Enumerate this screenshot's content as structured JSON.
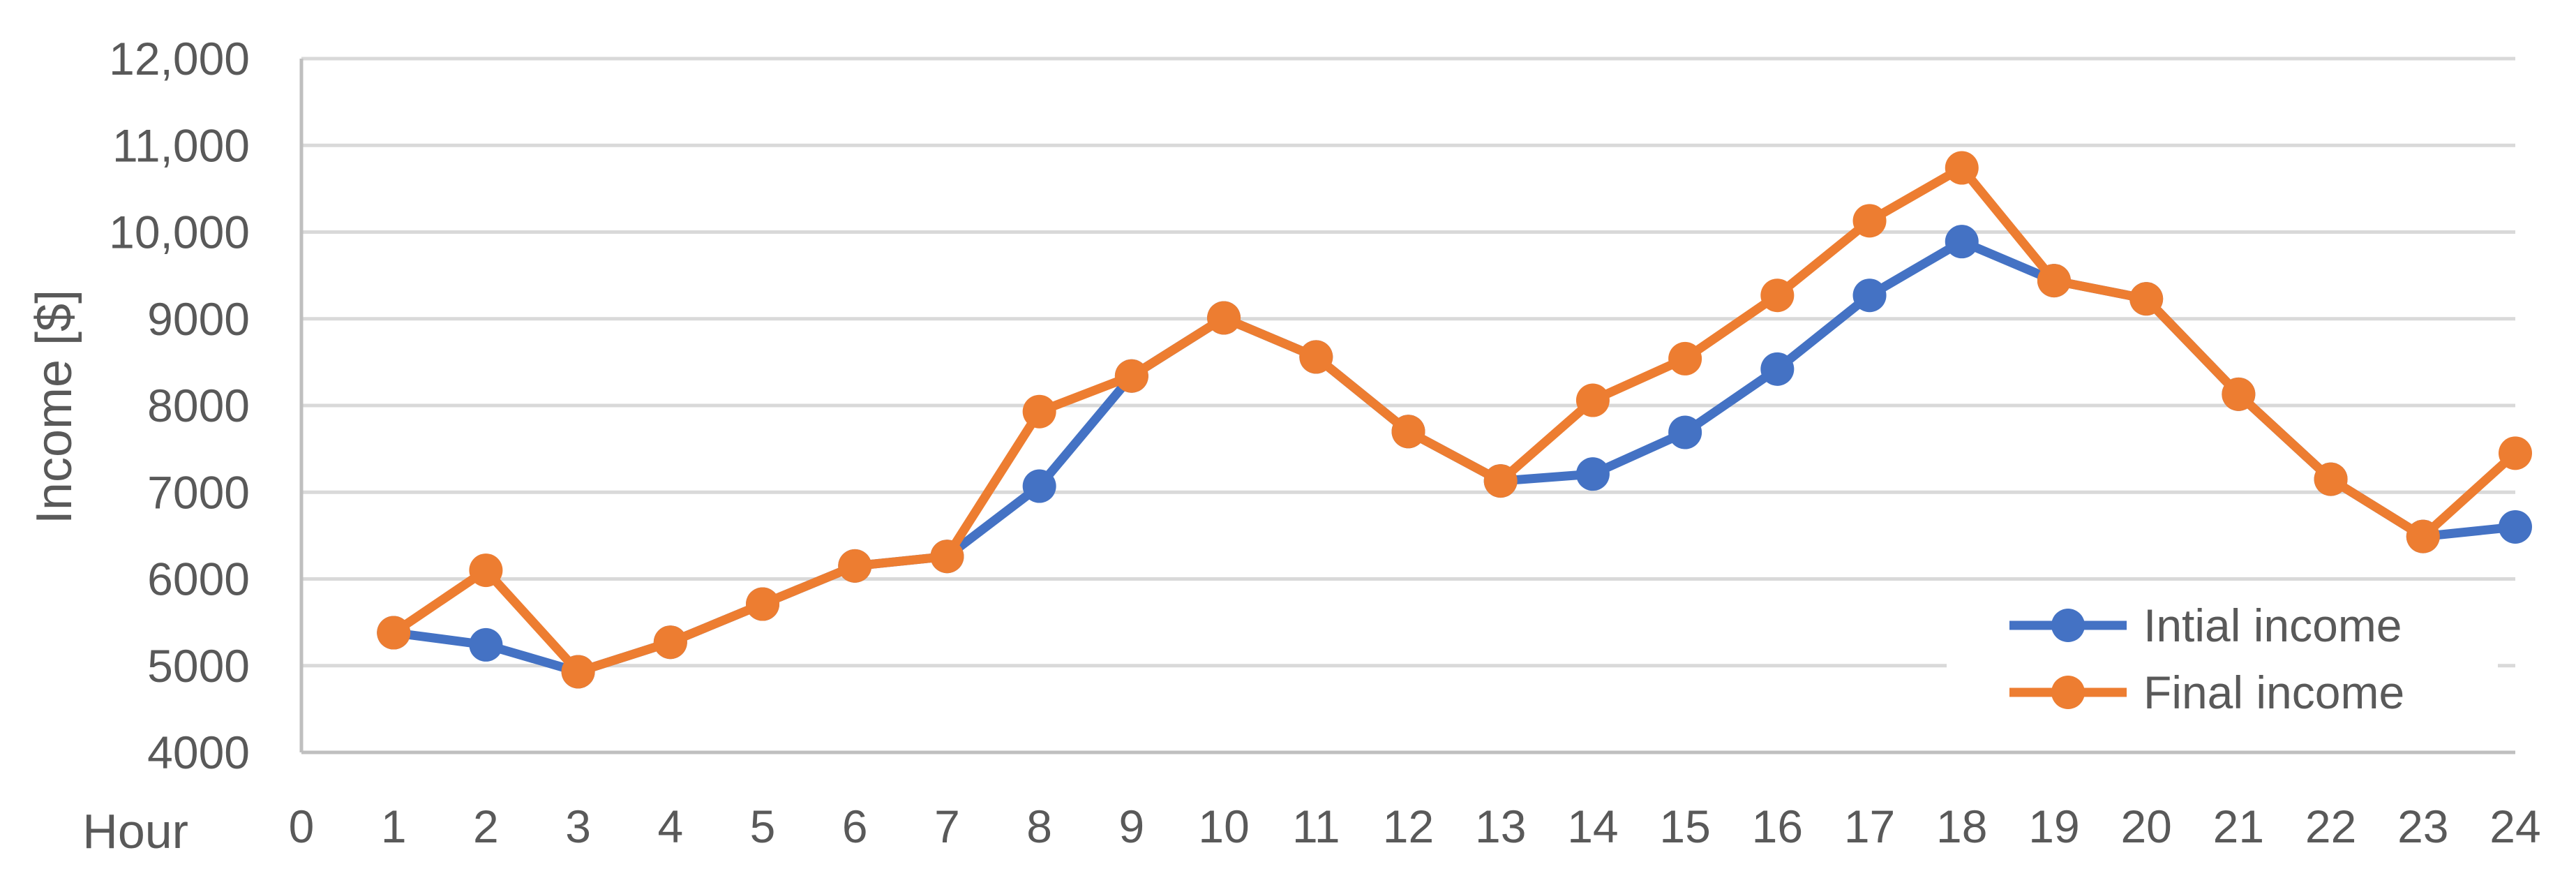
{
  "chart_data": {
    "type": "line",
    "title": "",
    "xlabel": "Hour",
    "ylabel": "Income [$]",
    "x": [
      1,
      2,
      3,
      4,
      5,
      6,
      7,
      8,
      9,
      10,
      11,
      12,
      13,
      14,
      15,
      16,
      17,
      18,
      19,
      20,
      21,
      22,
      23,
      24
    ],
    "xticks": [
      "0",
      "1",
      "2",
      "3",
      "4",
      "5",
      "6",
      "7",
      "8",
      "9",
      "10",
      "11",
      "12",
      "13",
      "14",
      "15",
      "16",
      "17",
      "18",
      "19",
      "20",
      "21",
      "22",
      "23",
      "24"
    ],
    "xlim": [
      0,
      24
    ],
    "ylim": [
      4000,
      12000
    ],
    "yticks": [
      4000,
      5000,
      6000,
      7000,
      8000,
      9000,
      10000,
      11000,
      12000
    ],
    "ytick_labels": [
      "4000",
      "5000",
      "6000",
      "7000",
      "8000",
      "9000",
      "10,000",
      "11,000",
      "12,000"
    ],
    "grid": "horizontal",
    "legend_position": "bottom-right",
    "series": [
      {
        "name": "Intial income",
        "color": "#4472C4",
        "values": [
          5380,
          5240,
          4930,
          5270,
          5710,
          6150,
          6260,
          7070,
          8340,
          9010,
          8560,
          7700,
          7130,
          7210,
          7690,
          8420,
          9270,
          9890,
          9440,
          9230,
          8130,
          7150,
          6490,
          6600
        ]
      },
      {
        "name": "Final income",
        "color": "#ED7D31",
        "values": [
          5380,
          6100,
          4930,
          5270,
          5710,
          6150,
          6260,
          7930,
          8340,
          9010,
          8560,
          7700,
          7130,
          8060,
          8540,
          9270,
          10130,
          10740,
          9440,
          9230,
          8130,
          7150,
          6490,
          7450
        ]
      }
    ]
  }
}
